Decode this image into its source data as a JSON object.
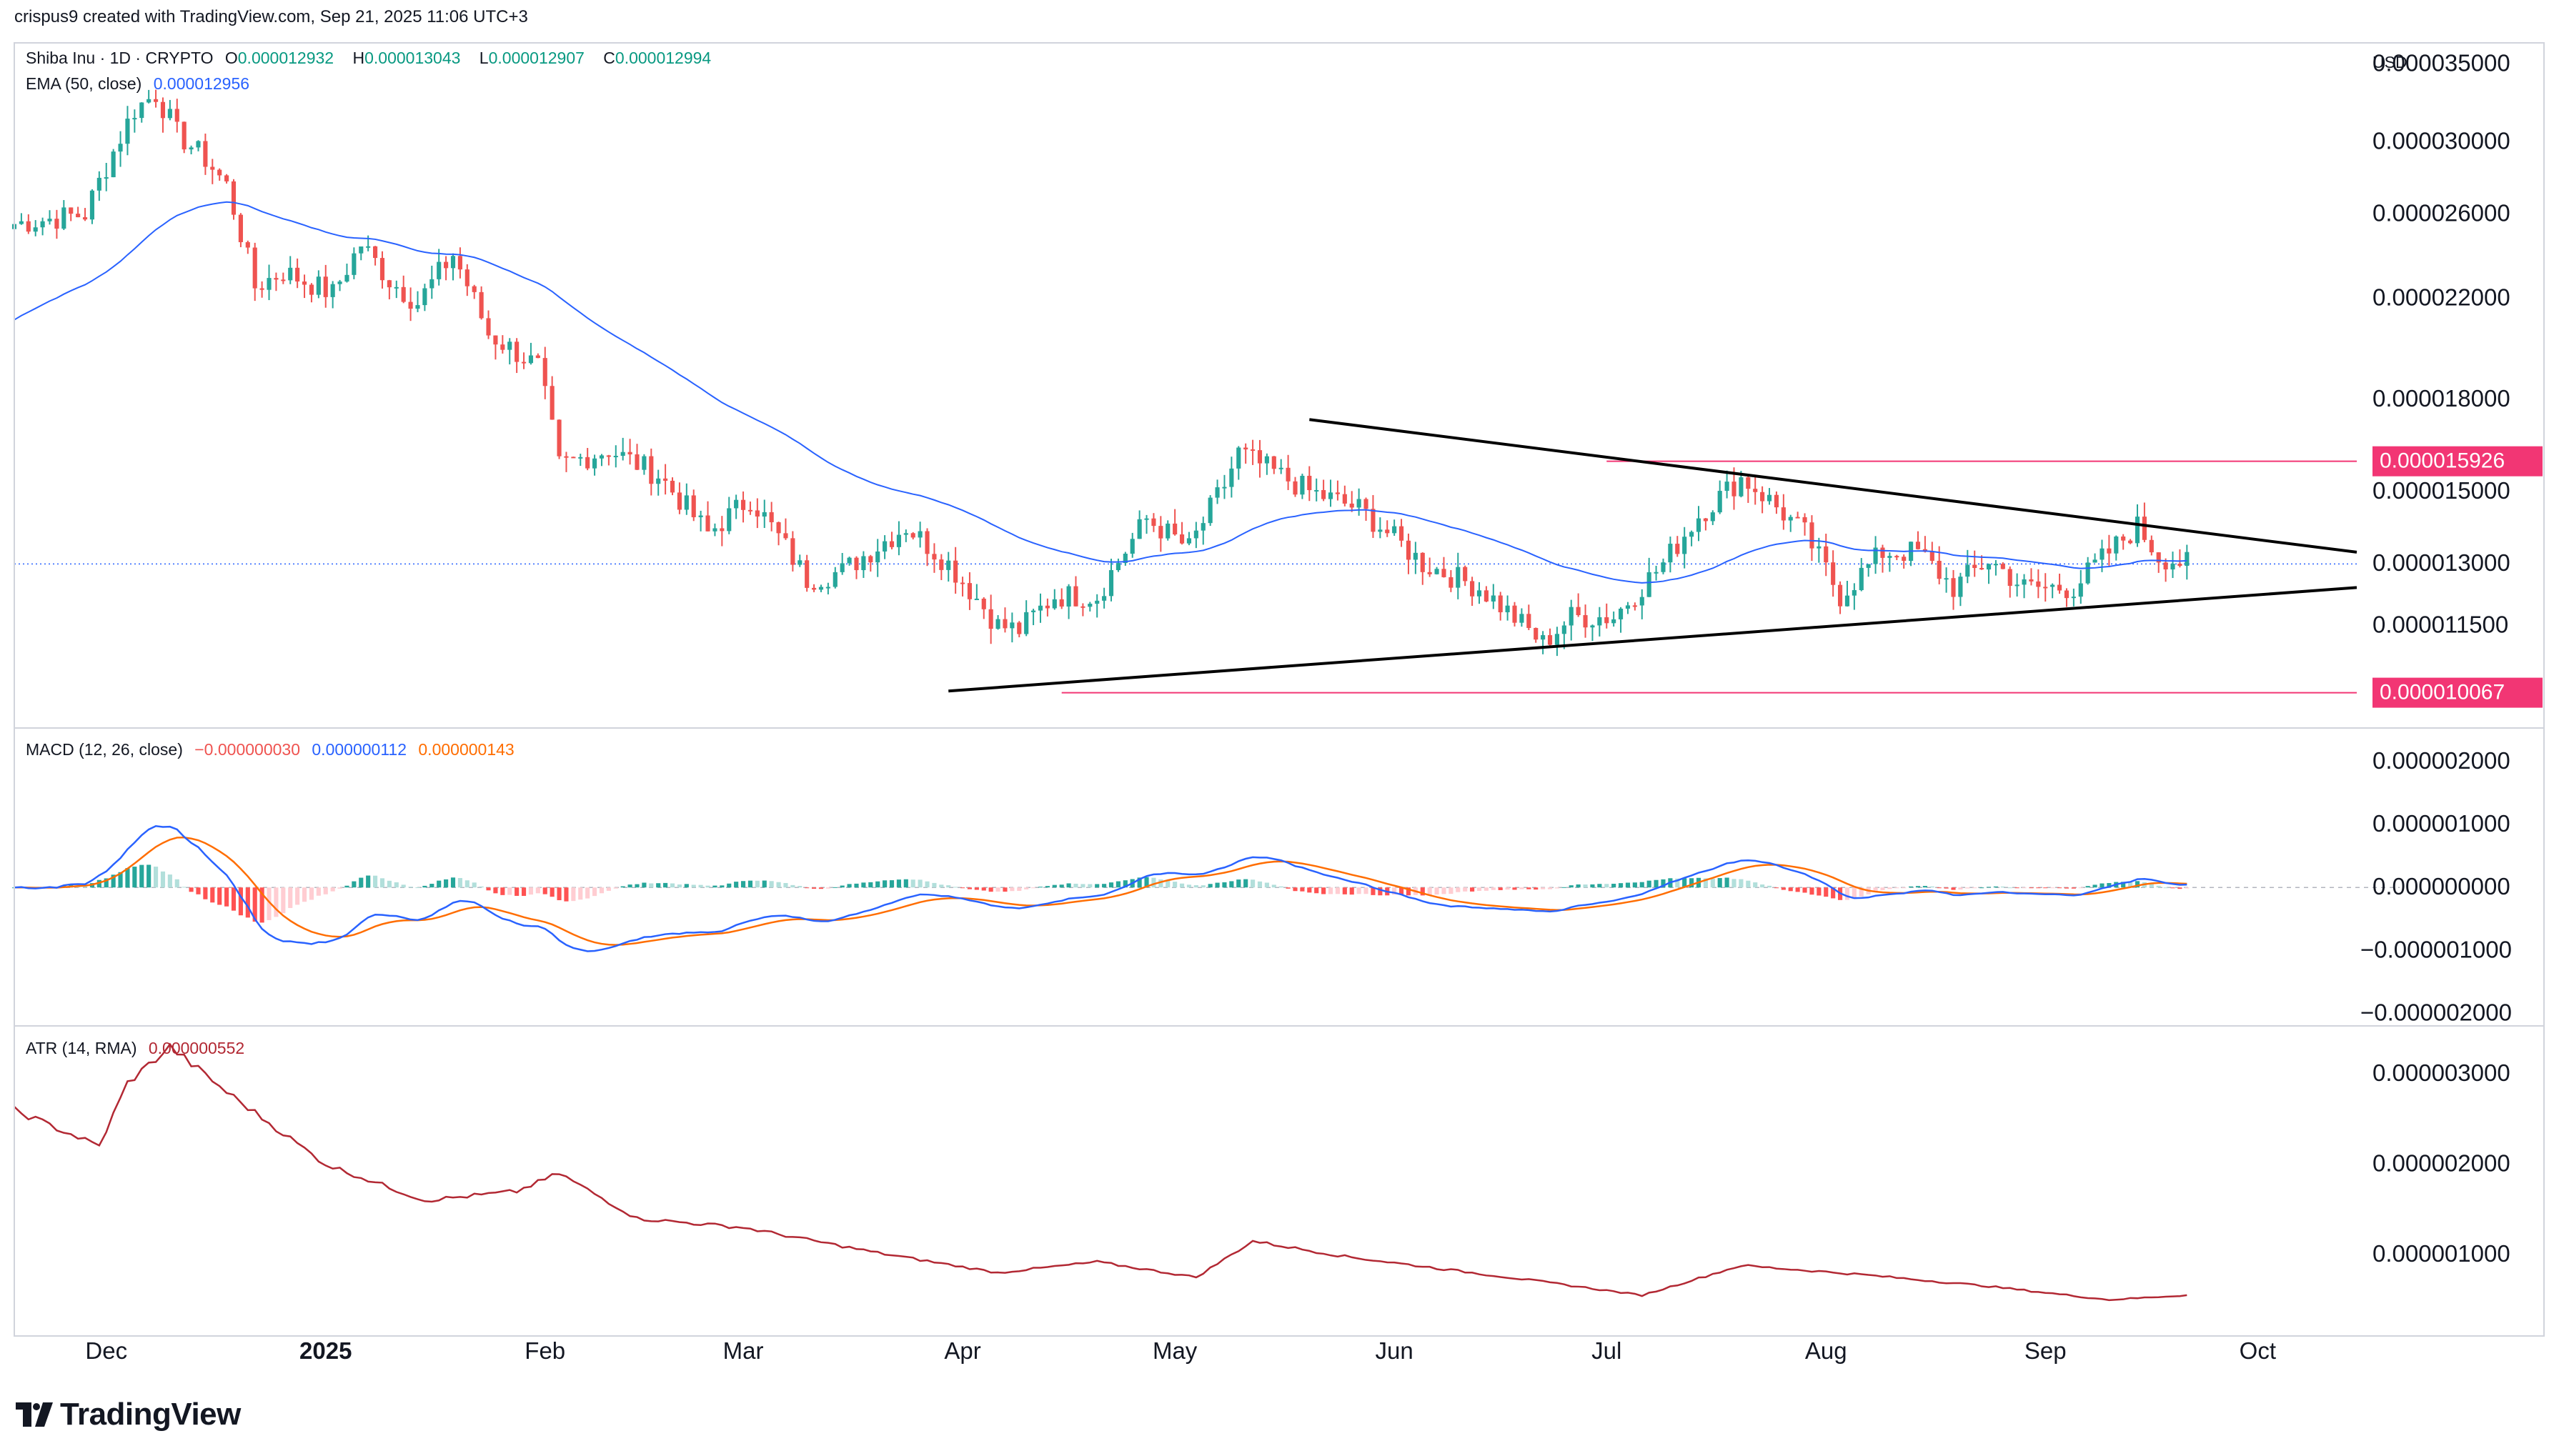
{
  "header": {
    "attribution": "crispus9 created with TradingView.com, Sep 21, 2025 11:06 UTC+3",
    "currency": "USD"
  },
  "legend": {
    "symbol": "Shiba Inu · 1D · CRYPTO",
    "o_label": "O",
    "o_val": "0.000012932",
    "h_label": "H",
    "h_val": "0.000013043",
    "l_label": "L",
    "l_val": "0.000012907",
    "c_label": "C",
    "c_val": "0.000012994",
    "ema_label": "EMA (50, close)",
    "ema_val": "0.000012956",
    "macd_label": "MACD (12, 26, close)",
    "macd_hist": "−0.000000030",
    "macd_line": "0.000000112",
    "macd_signal": "0.000000143",
    "atr_label": "ATR (14, RMA)",
    "atr_val": "0.000000552"
  },
  "logo": {
    "text": "TradingView"
  },
  "colors": {
    "up": "#26a69a",
    "down": "#ef5350",
    "ema": "#2962ff",
    "macd": "#2962ff",
    "signal": "#ff6d00",
    "atr": "#b22833",
    "level": "#f23674",
    "trend": "#000000",
    "last": "#2962ff",
    "grid": "#e0e3eb"
  },
  "chart_data": [
    {
      "type": "candlestick",
      "title": "Shiba Inu · 1D · CRYPTO",
      "ylabel": "USD",
      "x_ticks": [
        "Dec",
        "2025",
        "Feb",
        "Mar",
        "Apr",
        "May",
        "Jun",
        "Jul",
        "Aug",
        "Sep",
        "Oct"
      ],
      "y_ticks": [
        "0.000035000",
        "0.000030000",
        "0.000026000",
        "0.000022000",
        "0.000018000",
        "0.000015000",
        "0.000013000",
        "0.000011500"
      ],
      "y_tick_values": [
        3.5e-05,
        3e-05,
        2.6e-05,
        2.2e-05,
        1.8e-05,
        1.5e-05,
        1.3e-05,
        1.15e-05
      ],
      "scale": "log",
      "ylim": [
        9.4e-06,
        3.65e-05
      ],
      "last_close": 1.2994e-05,
      "level_labels": [
        "0.000015926",
        "0.000010067"
      ],
      "levels": [
        1.5926e-05,
        1.0067e-05
      ],
      "trendlines": [
        {
          "name": "upper",
          "from": [
            "2025-05-20",
            1.73e-05
          ],
          "to": [
            "2025-10-15",
            1.33e-05
          ]
        },
        {
          "name": "lower",
          "from": [
            "2025-03-30",
            1.01e-05
          ],
          "to": [
            "2025-10-15",
            1.24e-05
          ]
        }
      ],
      "anchors": [
        {
          "date": "2024-11-18",
          "close": 2.55e-05
        },
        {
          "date": "2024-11-28",
          "close": 2.6e-05
        },
        {
          "date": "2024-12-05",
          "close": 3.2e-05
        },
        {
          "date": "2024-12-08",
          "close": 3.3e-05
        },
        {
          "date": "2024-12-11",
          "close": 3.05e-05
        },
        {
          "date": "2024-12-15",
          "close": 2.9e-05
        },
        {
          "date": "2024-12-18",
          "close": 2.75e-05
        },
        {
          "date": "2024-12-22",
          "close": 2.25e-05
        },
        {
          "date": "2024-12-26",
          "close": 2.32e-05
        },
        {
          "date": "2025-01-02",
          "close": 2.22e-05
        },
        {
          "date": "2025-01-06",
          "close": 2.45e-05
        },
        {
          "date": "2025-01-10",
          "close": 2.28e-05
        },
        {
          "date": "2025-01-14",
          "close": 2.18e-05
        },
        {
          "date": "2025-01-19",
          "close": 2.4e-05
        },
        {
          "date": "2025-01-24",
          "close": 2.05e-05
        },
        {
          "date": "2025-01-31",
          "close": 1.92e-05
        },
        {
          "date": "2025-02-03",
          "close": 1.58e-05
        },
        {
          "date": "2025-02-10",
          "close": 1.63e-05
        },
        {
          "date": "2025-02-17",
          "close": 1.55e-05
        },
        {
          "date": "2025-02-24",
          "close": 1.38e-05
        },
        {
          "date": "2025-03-02",
          "close": 1.48e-05
        },
        {
          "date": "2025-03-10",
          "close": 1.26e-05
        },
        {
          "date": "2025-03-15",
          "close": 1.28e-05
        },
        {
          "date": "2025-03-24",
          "close": 1.4e-05
        },
        {
          "date": "2025-03-30",
          "close": 1.3e-05
        },
        {
          "date": "2025-04-06",
          "close": 1.15e-05
        },
        {
          "date": "2025-04-09",
          "close": 1.14e-05
        },
        {
          "date": "2025-04-14",
          "close": 1.22e-05
        },
        {
          "date": "2025-04-20",
          "close": 1.22e-05
        },
        {
          "date": "2025-04-27",
          "close": 1.42e-05
        },
        {
          "date": "2025-05-03",
          "close": 1.34e-05
        },
        {
          "date": "2025-05-08",
          "close": 1.52e-05
        },
        {
          "date": "2025-05-10",
          "close": 1.62e-05
        },
        {
          "date": "2025-05-14",
          "close": 1.57e-05
        },
        {
          "date": "2025-05-20",
          "close": 1.5e-05
        },
        {
          "date": "2025-05-27",
          "close": 1.45e-05
        },
        {
          "date": "2025-06-05",
          "close": 1.3e-05
        },
        {
          "date": "2025-06-13",
          "close": 1.24e-05
        },
        {
          "date": "2025-06-22",
          "close": 1.11e-05
        },
        {
          "date": "2025-06-26",
          "close": 1.17e-05
        },
        {
          "date": "2025-07-02",
          "close": 1.17e-05
        },
        {
          "date": "2025-07-09",
          "close": 1.3e-05
        },
        {
          "date": "2025-07-14",
          "close": 1.43e-05
        },
        {
          "date": "2025-07-20",
          "close": 1.54e-05
        },
        {
          "date": "2025-07-22",
          "close": 1.51e-05
        },
        {
          "date": "2025-07-29",
          "close": 1.38e-05
        },
        {
          "date": "2025-08-03",
          "close": 1.22e-05
        },
        {
          "date": "2025-08-09",
          "close": 1.33e-05
        },
        {
          "date": "2025-08-14",
          "close": 1.33e-05
        },
        {
          "date": "2025-08-19",
          "close": 1.24e-05
        },
        {
          "date": "2025-08-24",
          "close": 1.31e-05
        },
        {
          "date": "2025-08-29",
          "close": 1.24e-05
        },
        {
          "date": "2025-09-05",
          "close": 1.24e-05
        },
        {
          "date": "2025-09-10",
          "close": 1.33e-05
        },
        {
          "date": "2025-09-14",
          "close": 1.4e-05
        },
        {
          "date": "2025-09-17",
          "close": 1.32e-05
        },
        {
          "date": "2025-09-21",
          "close": 1.2994e-05
        }
      ],
      "ema_last": 1.2956e-05
    },
    {
      "type": "line",
      "title": "MACD (12, 26, close)",
      "y_ticks": [
        "0.000002000",
        "0.000001000",
        "0.000000000",
        "−0.000001000",
        "−0.000002000"
      ],
      "y_tick_values": [
        2e-06,
        1e-06,
        0,
        -1e-06,
        -2e-06
      ],
      "ylim": [
        -2.2e-06,
        2.5e-06
      ],
      "series": [
        {
          "name": "MACD",
          "last": 1.12e-07
        },
        {
          "name": "Signal",
          "last": 1.43e-07
        },
        {
          "name": "Histogram",
          "last": -3e-08
        }
      ]
    },
    {
      "type": "line",
      "title": "ATR (14, RMA)",
      "y_ticks": [
        "0.000003000",
        "0.000002000",
        "0.000001000"
      ],
      "y_tick_values": [
        3e-06,
        2e-06,
        1e-06
      ],
      "ylim": [
        1e-07,
        3.5e-06
      ],
      "anchors": [
        {
          "date": "2024-11-18",
          "value": 2.6e-06
        },
        {
          "date": "2024-11-30",
          "value": 2.2e-06
        },
        {
          "date": "2024-12-04",
          "value": 2.9e-06
        },
        {
          "date": "2024-12-10",
          "value": 3.3e-06
        },
        {
          "date": "2024-12-18",
          "value": 2.8e-06
        },
        {
          "date": "2025-01-01",
          "value": 2e-06
        },
        {
          "date": "2025-01-15",
          "value": 1.6e-06
        },
        {
          "date": "2025-01-28",
          "value": 1.7e-06
        },
        {
          "date": "2025-02-03",
          "value": 1.9e-06
        },
        {
          "date": "2025-02-14",
          "value": 1.4e-06
        },
        {
          "date": "2025-03-01",
          "value": 1.3e-06
        },
        {
          "date": "2025-03-20",
          "value": 1.02e-06
        },
        {
          "date": "2025-04-06",
          "value": 8e-07
        },
        {
          "date": "2025-04-20",
          "value": 9.2e-07
        },
        {
          "date": "2025-05-04",
          "value": 7.5e-07
        },
        {
          "date": "2025-05-12",
          "value": 1.15e-06
        },
        {
          "date": "2025-05-25",
          "value": 9.8e-07
        },
        {
          "date": "2025-06-22",
          "value": 7e-07
        },
        {
          "date": "2025-07-06",
          "value": 5.5e-07
        },
        {
          "date": "2025-07-20",
          "value": 8.8e-07
        },
        {
          "date": "2025-08-06",
          "value": 7.8e-07
        },
        {
          "date": "2025-08-24",
          "value": 6.5e-07
        },
        {
          "date": "2025-09-10",
          "value": 5e-07
        },
        {
          "date": "2025-09-21",
          "value": 5.52e-07
        }
      ]
    }
  ]
}
